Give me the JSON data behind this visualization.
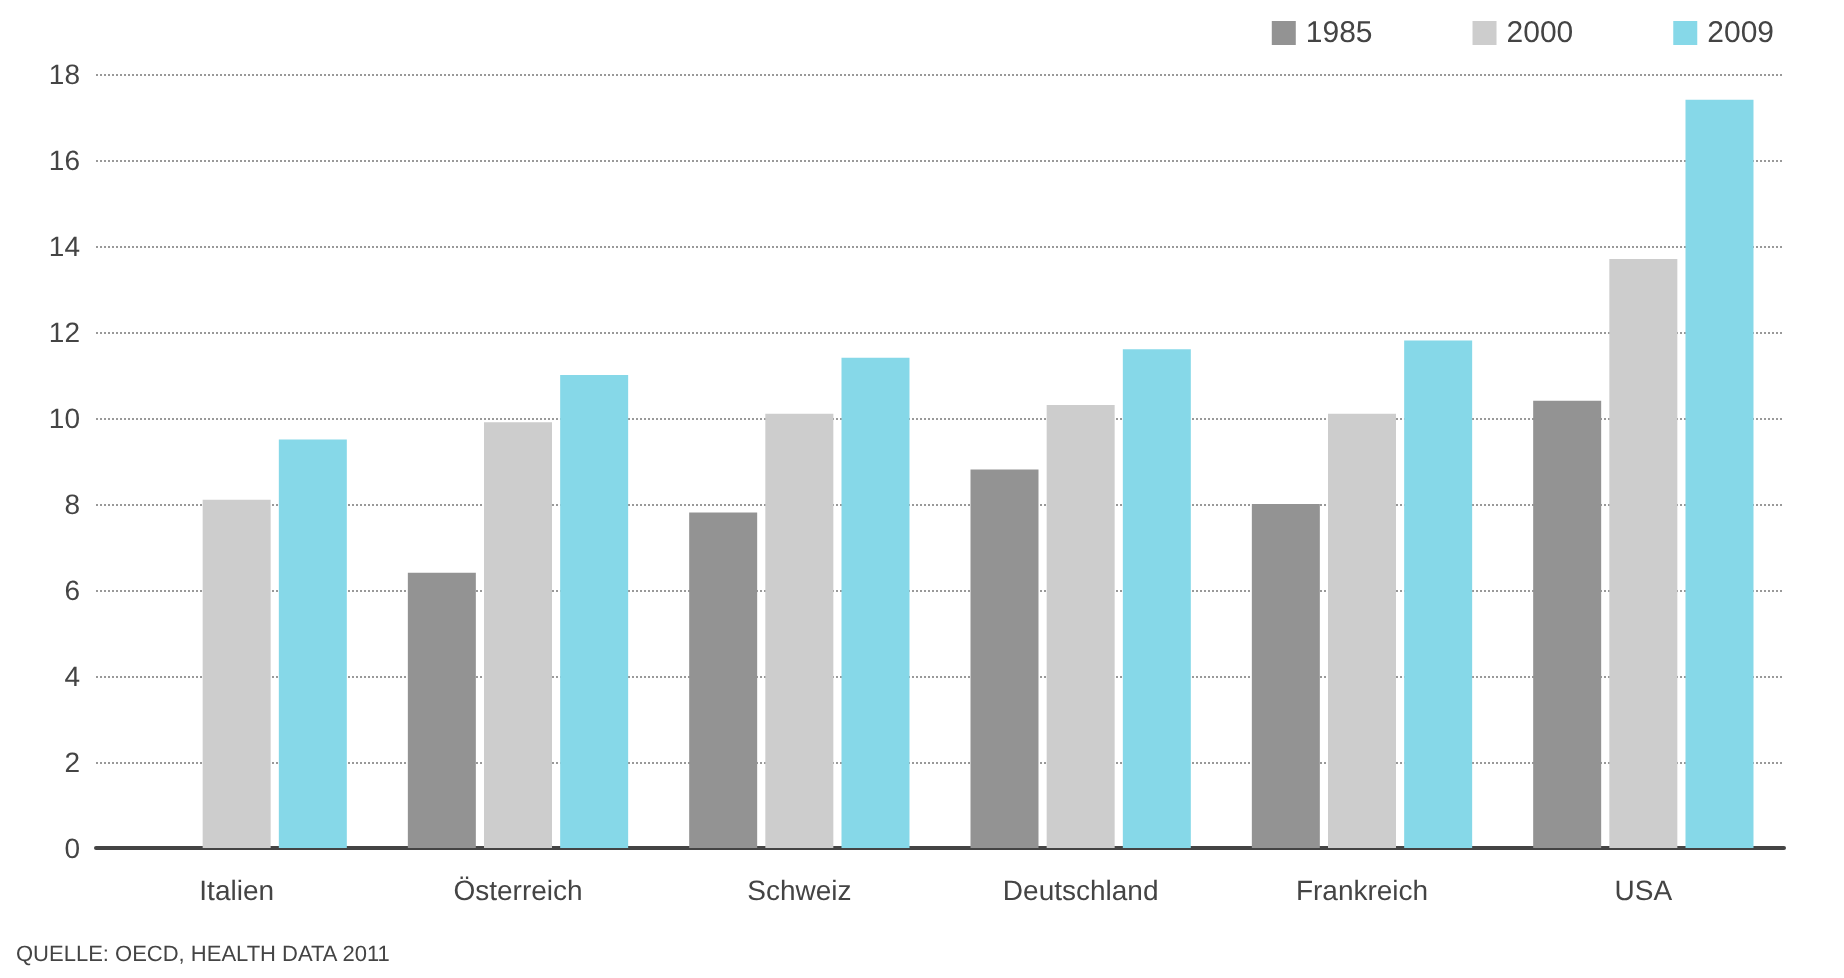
{
  "chart_data": {
    "type": "bar",
    "categories": [
      "Italien",
      "Österreich",
      "Schweiz",
      "Deutschland",
      "Frankreich",
      "USA"
    ],
    "series": [
      {
        "name": "1985",
        "color": "#939393",
        "values": [
          null,
          6.4,
          7.8,
          8.8,
          8.0,
          10.4
        ]
      },
      {
        "name": "2000",
        "color": "#cdcdcd",
        "values": [
          8.1,
          9.9,
          10.1,
          10.3,
          10.1,
          13.7
        ]
      },
      {
        "name": "2009",
        "color": "#86d8e8",
        "values": [
          9.5,
          11.0,
          11.4,
          11.6,
          11.8,
          17.4
        ]
      }
    ],
    "ylim": [
      0,
      18
    ],
    "yticks": [
      0,
      2,
      4,
      6,
      8,
      10,
      12,
      14,
      16,
      18
    ],
    "grid": "y",
    "legend": "top right",
    "annotations": [
      "QUELLE: OECD, HEALTH DATA 2011"
    ]
  }
}
